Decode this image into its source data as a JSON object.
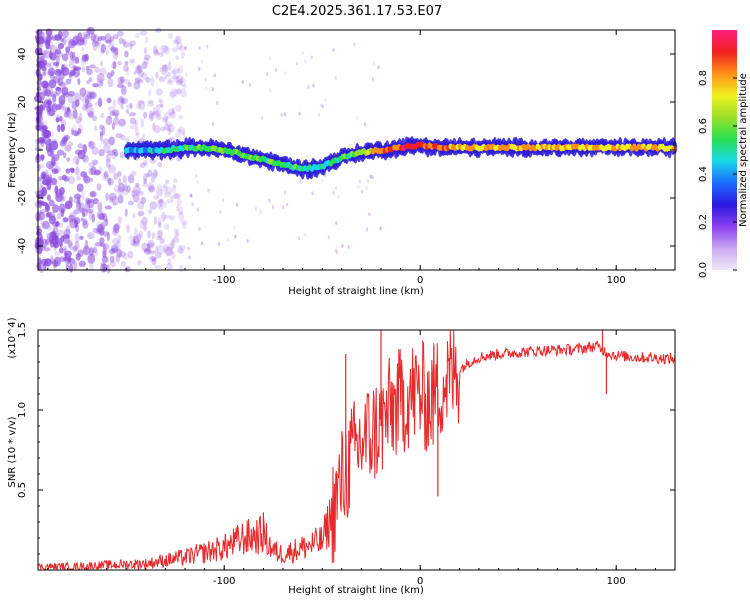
{
  "figure_title": "C2E4.2025.361.17.53.E07",
  "colors": {
    "snr_line": "#e8282a",
    "spectrogram_track": "#2a1ad8",
    "spectrogram_noise": "#8a4be0",
    "colormap": [
      "#f2e8fa",
      "#c8a8f0",
      "#8a3df0",
      "#2a18e0",
      "#1a6cff",
      "#18d8e8",
      "#28e050",
      "#9ae028",
      "#f0f020",
      "#ff9018",
      "#f02020",
      "#ff2080"
    ]
  },
  "chart_data": [
    {
      "type": "heatmap",
      "title": "",
      "xlabel": "Height of straight line (km)",
      "ylabel": "Frequency (Hz)",
      "xlim": [
        -195,
        130
      ],
      "ylim": [
        -50,
        50
      ],
      "x_ticks": [
        -100,
        0,
        100
      ],
      "y_ticks": [
        -40,
        -20,
        0,
        20,
        40
      ],
      "colorbar": {
        "label": "Normalized spectral amplitude",
        "range": [
          0,
          1
        ],
        "ticks": [
          0.0,
          0.2,
          0.4,
          0.6,
          0.8
        ]
      },
      "track": {
        "x": [
          -150,
          -140,
          -130,
          -120,
          -110,
          -100,
          -90,
          -80,
          -70,
          -60,
          -50,
          -40,
          -30,
          -20,
          -10,
          0,
          10,
          20,
          40,
          60,
          80,
          100,
          130
        ],
        "freq_hz": [
          0,
          0,
          0,
          1,
          1,
          0,
          -2,
          -4,
          -6,
          -8,
          -7,
          -3,
          -1,
          0,
          1,
          2,
          1,
          1,
          1,
          1,
          1,
          1,
          1
        ],
        "amplitude": [
          0.3,
          0.35,
          0.4,
          0.45,
          0.5,
          0.5,
          0.5,
          0.5,
          0.45,
          0.45,
          0.4,
          0.45,
          0.55,
          0.8,
          0.85,
          0.8,
          0.75,
          0.7,
          0.7,
          0.7,
          0.7,
          0.7,
          0.7
        ]
      }
    },
    {
      "type": "line",
      "title": "",
      "xlabel": "Height of straight line (km)",
      "ylabel": "SNR (10 * v/v)",
      "y_multiplier": "(x10^4)",
      "xlim": [
        -195,
        130
      ],
      "ylim": [
        0,
        1.5
      ],
      "x_ticks": [
        -100,
        0,
        100
      ],
      "y_ticks": [
        0.5,
        1.0,
        1.5
      ],
      "series": [
        {
          "name": "SNR",
          "x": [
            -195,
            -180,
            -160,
            -140,
            -120,
            -100,
            -90,
            -80,
            -75,
            -70,
            -60,
            -50,
            -45,
            -40,
            -35,
            -30,
            -25,
            -20,
            -15,
            -10,
            -5,
            0,
            5,
            10,
            15,
            20,
            25,
            30,
            40,
            60,
            80,
            90,
            95,
            100,
            110,
            130
          ],
          "values": [
            0.02,
            0.02,
            0.03,
            0.04,
            0.08,
            0.14,
            0.2,
            0.22,
            0.12,
            0.1,
            0.14,
            0.18,
            0.35,
            0.55,
            0.7,
            0.8,
            0.85,
            0.9,
            1.0,
            1.05,
            1.1,
            1.1,
            1.05,
            1.15,
            1.2,
            1.25,
            1.3,
            1.33,
            1.35,
            1.37,
            1.38,
            1.4,
            1.36,
            1.34,
            1.33,
            1.32
          ]
        }
      ],
      "spikes": [
        {
          "x": -80,
          "value": 0.36
        },
        {
          "x": -38,
          "value": 1.35
        },
        {
          "x": -20,
          "value": 1.5
        },
        {
          "x": -10,
          "value": 1.28
        },
        {
          "x": 7,
          "value": 1.4
        },
        {
          "x": 9,
          "value": 0.46
        },
        {
          "x": 93,
          "value": 1.5
        },
        {
          "x": 95,
          "value": 1.1
        }
      ]
    }
  ]
}
